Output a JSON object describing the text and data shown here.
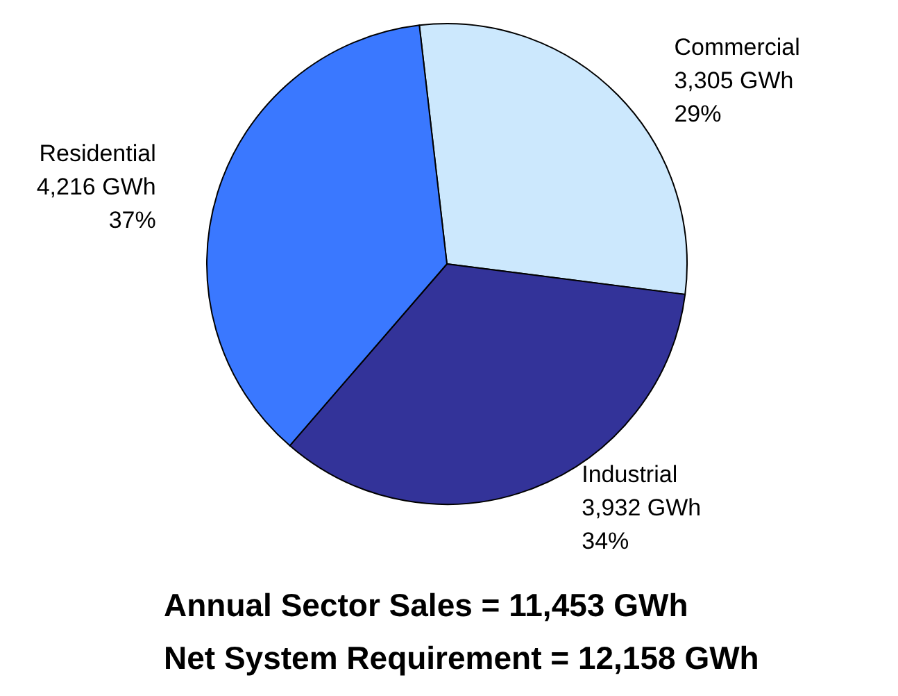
{
  "chart_data": {
    "type": "pie",
    "categories": [
      "Commercial",
      "Industrial",
      "Residential"
    ],
    "values": [
      3305,
      3932,
      4216
    ],
    "colors": [
      "#cce8fd",
      "#333399",
      "#3a78ff"
    ],
    "value_labels": [
      "3,305 GWh\n29%",
      "3,932 GWh\n34%",
      "4,216 GWh\n37%"
    ],
    "annotations": [
      "Annual Sector Sales = 11,453 GWh",
      "Net System Requirement = 12,158 GWh"
    ]
  }
}
